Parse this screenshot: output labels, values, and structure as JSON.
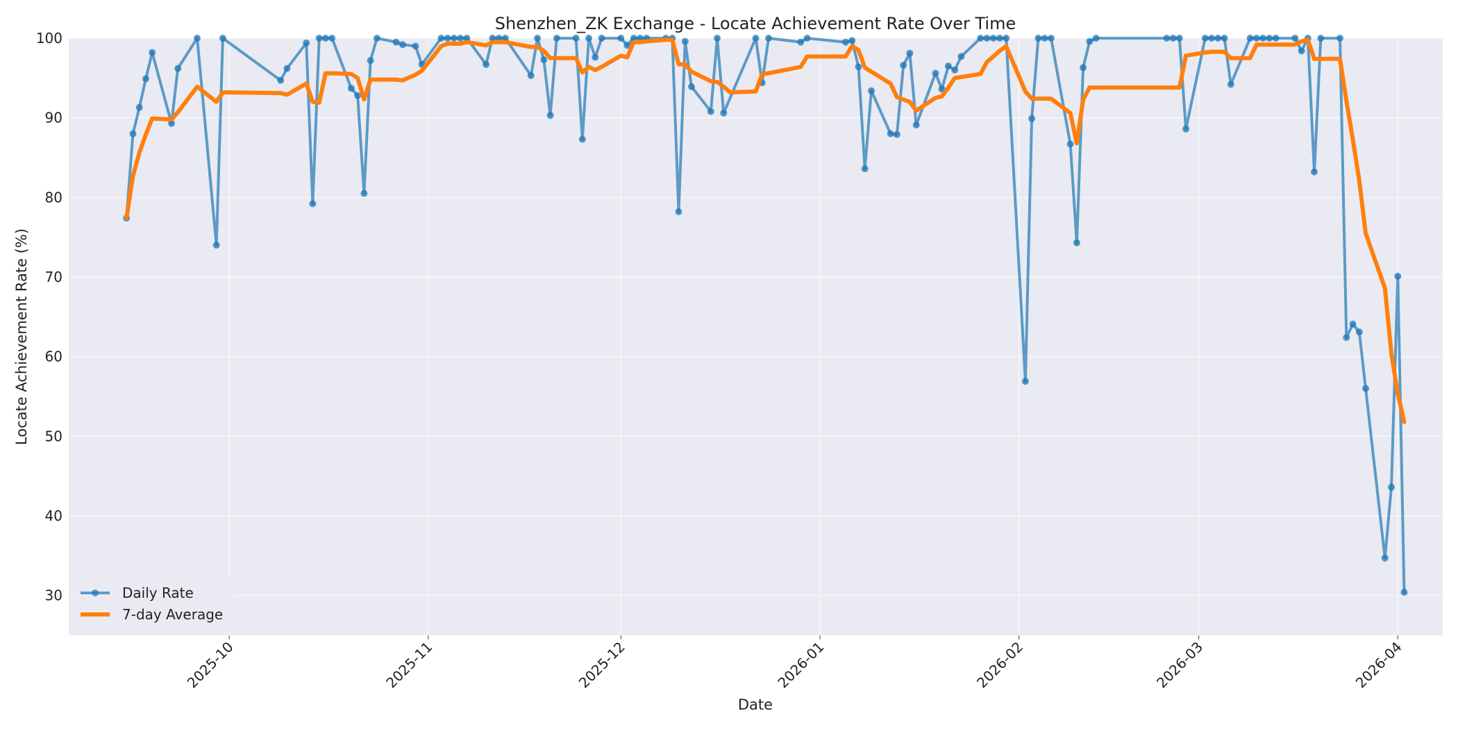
{
  "chart_data": {
    "type": "line",
    "title": "Shenzhen_ZK Exchange - Locate Achievement Rate Over Time",
    "xlabel": "Date",
    "ylabel": "Locate Achievement Rate (%)",
    "xlim": [
      "2025-09-06",
      "2026-04-08"
    ],
    "ylim": [
      25,
      100
    ],
    "x_ticks": [
      "2025-10",
      "2025-11",
      "2025-12",
      "2026-01",
      "2026-02",
      "2026-03",
      "2026-04"
    ],
    "y_ticks": [
      30,
      40,
      50,
      60,
      70,
      80,
      90,
      100
    ],
    "grid": true,
    "legend_position": "lower-left",
    "colors": {
      "daily": "#1f77b4",
      "average": "#ff7f0e",
      "plot_bg": "#eaeaf2",
      "grid": "#f5f5f9"
    },
    "series": [
      {
        "name": "Daily Rate",
        "style": "line-markers",
        "color": "#1f77b4",
        "points": [
          [
            "2025-09-15",
            77.4
          ],
          [
            "2025-09-16",
            88.0
          ],
          [
            "2025-09-17",
            91.3
          ],
          [
            "2025-09-18",
            94.9
          ],
          [
            "2025-09-19",
            98.2
          ],
          [
            "2025-09-22",
            89.3
          ],
          [
            "2025-09-23",
            96.2
          ],
          [
            "2025-09-26",
            100.0
          ],
          [
            "2025-09-29",
            74.0
          ],
          [
            "2025-09-30",
            100.0
          ],
          [
            "2025-10-09",
            94.7
          ],
          [
            "2025-10-10",
            96.2
          ],
          [
            "2025-10-13",
            99.4
          ],
          [
            "2025-10-14",
            79.2
          ],
          [
            "2025-10-15",
            100.0
          ],
          [
            "2025-10-16",
            100.0
          ],
          [
            "2025-10-17",
            100.0
          ],
          [
            "2025-10-20",
            93.7
          ],
          [
            "2025-10-21",
            92.8
          ],
          [
            "2025-10-22",
            80.5
          ],
          [
            "2025-10-23",
            97.2
          ],
          [
            "2025-10-24",
            100.0
          ],
          [
            "2025-10-27",
            99.5
          ],
          [
            "2025-10-28",
            99.2
          ],
          [
            "2025-10-30",
            99.0
          ],
          [
            "2025-10-31",
            96.7
          ],
          [
            "2025-11-03",
            100.0
          ],
          [
            "2025-11-04",
            100.0
          ],
          [
            "2025-11-05",
            100.0
          ],
          [
            "2025-11-06",
            100.0
          ],
          [
            "2025-11-07",
            100.0
          ],
          [
            "2025-11-10",
            96.7
          ],
          [
            "2025-11-11",
            100.0
          ],
          [
            "2025-11-12",
            100.0
          ],
          [
            "2025-11-13",
            100.0
          ],
          [
            "2025-11-17",
            95.3
          ],
          [
            "2025-11-18",
            100.0
          ],
          [
            "2025-11-19",
            97.3
          ],
          [
            "2025-11-20",
            90.3
          ],
          [
            "2025-11-21",
            100.0
          ],
          [
            "2025-11-24",
            100.0
          ],
          [
            "2025-11-25",
            87.3
          ],
          [
            "2025-11-26",
            100.0
          ],
          [
            "2025-11-27",
            97.6
          ],
          [
            "2025-11-28",
            100.0
          ],
          [
            "2025-12-01",
            100.0
          ],
          [
            "2025-12-02",
            99.1
          ],
          [
            "2025-12-03",
            100.0
          ],
          [
            "2025-12-04",
            100.0
          ],
          [
            "2025-12-05",
            100.0
          ],
          [
            "2025-12-08",
            100.0
          ],
          [
            "2025-12-09",
            100.0
          ],
          [
            "2025-12-10",
            78.2
          ],
          [
            "2025-12-11",
            99.6
          ],
          [
            "2025-12-12",
            93.9
          ],
          [
            "2025-12-15",
            90.8
          ],
          [
            "2025-12-16",
            100.0
          ],
          [
            "2025-12-17",
            90.6
          ],
          [
            "2025-12-22",
            100.0
          ],
          [
            "2025-12-23",
            94.4
          ],
          [
            "2025-12-24",
            100.0
          ],
          [
            "2025-12-29",
            99.5
          ],
          [
            "2025-12-30",
            100.0
          ],
          [
            "2026-01-05",
            99.5
          ],
          [
            "2026-01-06",
            99.7
          ],
          [
            "2026-01-07",
            96.4
          ],
          [
            "2026-01-08",
            83.6
          ],
          [
            "2026-01-09",
            93.4
          ],
          [
            "2026-01-12",
            88.0
          ],
          [
            "2026-01-13",
            87.9
          ],
          [
            "2026-01-14",
            96.6
          ],
          [
            "2026-01-15",
            98.1
          ],
          [
            "2026-01-16",
            89.1
          ],
          [
            "2026-01-19",
            95.6
          ],
          [
            "2026-01-20",
            93.6
          ],
          [
            "2026-01-21",
            96.5
          ],
          [
            "2026-01-22",
            96.0
          ],
          [
            "2026-01-23",
            97.7
          ],
          [
            "2026-01-26",
            100.0
          ],
          [
            "2026-01-27",
            100.0
          ],
          [
            "2026-01-28",
            100.0
          ],
          [
            "2026-01-29",
            100.0
          ],
          [
            "2026-01-30",
            100.0
          ],
          [
            "2026-02-02",
            56.9
          ],
          [
            "2026-02-03",
            89.9
          ],
          [
            "2026-02-04",
            100.0
          ],
          [
            "2026-02-05",
            100.0
          ],
          [
            "2026-02-06",
            100.0
          ],
          [
            "2026-02-09",
            86.7
          ],
          [
            "2026-02-10",
            74.3
          ],
          [
            "2026-02-11",
            96.3
          ],
          [
            "2026-02-12",
            99.6
          ],
          [
            "2026-02-13",
            100.0
          ],
          [
            "2026-02-24",
            100.0
          ],
          [
            "2026-02-25",
            100.0
          ],
          [
            "2026-02-26",
            100.0
          ],
          [
            "2026-02-27",
            88.6
          ],
          [
            "2026-03-02",
            100.0
          ],
          [
            "2026-03-03",
            100.0
          ],
          [
            "2026-03-04",
            100.0
          ],
          [
            "2026-03-05",
            100.0
          ],
          [
            "2026-03-06",
            94.2
          ],
          [
            "2026-03-09",
            100.0
          ],
          [
            "2026-03-10",
            100.0
          ],
          [
            "2026-03-11",
            100.0
          ],
          [
            "2026-03-12",
            100.0
          ],
          [
            "2026-03-13",
            100.0
          ],
          [
            "2026-03-16",
            100.0
          ],
          [
            "2026-03-17",
            98.4
          ],
          [
            "2026-03-18",
            100.0
          ],
          [
            "2026-03-19",
            83.2
          ],
          [
            "2026-03-20",
            100.0
          ],
          [
            "2026-03-23",
            100.0
          ],
          [
            "2026-03-24",
            62.4
          ],
          [
            "2026-03-25",
            64.1
          ],
          [
            "2026-03-26",
            63.1
          ],
          [
            "2026-03-27",
            56.0
          ],
          [
            "2026-03-30",
            34.7
          ],
          [
            "2026-03-31",
            43.6
          ],
          [
            "2026-04-01",
            70.1
          ],
          [
            "2026-04-02",
            30.4
          ]
        ]
      },
      {
        "name": "7-day Average",
        "style": "line",
        "color": "#ff7f0e",
        "points": [
          [
            "2025-09-15",
            77.4
          ],
          [
            "2025-09-16",
            82.7
          ],
          [
            "2025-09-17",
            85.6
          ],
          [
            "2025-09-18",
            87.9
          ],
          [
            "2025-09-19",
            89.9
          ],
          [
            "2025-09-22",
            89.8
          ],
          [
            "2025-09-23",
            90.7
          ],
          [
            "2025-09-26",
            93.9
          ],
          [
            "2025-09-29",
            92.0
          ],
          [
            "2025-09-30",
            93.2
          ],
          [
            "2025-10-09",
            93.1
          ],
          [
            "2025-10-10",
            92.9
          ],
          [
            "2025-10-13",
            94.3
          ],
          [
            "2025-10-14",
            92.0
          ],
          [
            "2025-10-15",
            91.9
          ],
          [
            "2025-10-16",
            95.6
          ],
          [
            "2025-10-17",
            95.6
          ],
          [
            "2025-10-20",
            95.5
          ],
          [
            "2025-10-21",
            95.0
          ],
          [
            "2025-10-22",
            92.3
          ],
          [
            "2025-10-23",
            94.8
          ],
          [
            "2025-10-24",
            94.8
          ],
          [
            "2025-10-27",
            94.8
          ],
          [
            "2025-10-28",
            94.7
          ],
          [
            "2025-10-30",
            95.4
          ],
          [
            "2025-10-31",
            95.9
          ],
          [
            "2025-11-03",
            99.0
          ],
          [
            "2025-11-04",
            99.3
          ],
          [
            "2025-11-05",
            99.3
          ],
          [
            "2025-11-06",
            99.3
          ],
          [
            "2025-11-07",
            99.5
          ],
          [
            "2025-11-10",
            99.1
          ],
          [
            "2025-11-11",
            99.5
          ],
          [
            "2025-11-12",
            99.5
          ],
          [
            "2025-11-13",
            99.5
          ],
          [
            "2025-11-17",
            98.9
          ],
          [
            "2025-11-18",
            98.9
          ],
          [
            "2025-11-19",
            98.4
          ],
          [
            "2025-11-20",
            97.5
          ],
          [
            "2025-11-21",
            97.5
          ],
          [
            "2025-11-24",
            97.5
          ],
          [
            "2025-11-25",
            95.7
          ],
          [
            "2025-11-26",
            96.4
          ],
          [
            "2025-11-27",
            96.0
          ],
          [
            "2025-11-28",
            96.4
          ],
          [
            "2025-12-01",
            97.8
          ],
          [
            "2025-12-02",
            97.6
          ],
          [
            "2025-12-03",
            99.5
          ],
          [
            "2025-12-04",
            99.5
          ],
          [
            "2025-12-05",
            99.6
          ],
          [
            "2025-12-08",
            99.8
          ],
          [
            "2025-12-09",
            99.8
          ],
          [
            "2025-12-10",
            96.7
          ],
          [
            "2025-12-11",
            96.7
          ],
          [
            "2025-12-12",
            95.8
          ],
          [
            "2025-12-15",
            94.6
          ],
          [
            "2025-12-16",
            94.5
          ],
          [
            "2025-12-17",
            93.9
          ],
          [
            "2025-12-18",
            93.2
          ],
          [
            "2025-12-22",
            93.3
          ],
          [
            "2025-12-23",
            95.5
          ],
          [
            "2025-12-24",
            95.6
          ],
          [
            "2025-12-29",
            96.4
          ],
          [
            "2025-12-30",
            97.7
          ],
          [
            "2026-01-05",
            97.7
          ],
          [
            "2026-01-06",
            99.0
          ],
          [
            "2026-01-07",
            98.5
          ],
          [
            "2026-01-08",
            96.3
          ],
          [
            "2026-01-12",
            94.3
          ],
          [
            "2026-01-13",
            92.6
          ],
          [
            "2026-01-15",
            92.0
          ],
          [
            "2026-01-16",
            90.9
          ],
          [
            "2026-01-19",
            92.5
          ],
          [
            "2026-01-20",
            92.7
          ],
          [
            "2026-01-21",
            93.8
          ],
          [
            "2026-01-22",
            95.0
          ],
          [
            "2026-01-26",
            95.5
          ],
          [
            "2026-01-27",
            97.0
          ],
          [
            "2026-01-29",
            98.4
          ],
          [
            "2026-01-30",
            99.0
          ],
          [
            "2026-02-02",
            93.3
          ],
          [
            "2026-02-03",
            92.4
          ],
          [
            "2026-02-06",
            92.4
          ],
          [
            "2026-02-09",
            90.6
          ],
          [
            "2026-02-10",
            86.8
          ],
          [
            "2026-02-11",
            92.3
          ],
          [
            "2026-02-12",
            93.8
          ],
          [
            "2026-02-13",
            93.8
          ],
          [
            "2026-02-24",
            93.8
          ],
          [
            "2026-02-25",
            93.8
          ],
          [
            "2026-02-26",
            93.8
          ],
          [
            "2026-02-27",
            97.8
          ],
          [
            "2026-03-02",
            98.2
          ],
          [
            "2026-03-03",
            98.3
          ],
          [
            "2026-03-05",
            98.3
          ],
          [
            "2026-03-06",
            97.5
          ],
          [
            "2026-03-09",
            97.5
          ],
          [
            "2026-03-10",
            99.2
          ],
          [
            "2026-03-12",
            99.2
          ],
          [
            "2026-03-16",
            99.2
          ],
          [
            "2026-03-17",
            99.6
          ],
          [
            "2026-03-18",
            99.8
          ],
          [
            "2026-03-19",
            97.4
          ],
          [
            "2026-03-23",
            97.4
          ],
          [
            "2026-03-24",
            92.1
          ],
          [
            "2026-03-25",
            87.3
          ],
          [
            "2026-03-26",
            82.1
          ],
          [
            "2026-03-27",
            75.5
          ],
          [
            "2026-03-30",
            68.6
          ],
          [
            "2026-03-31",
            60.4
          ],
          [
            "2026-04-01",
            55.3
          ],
          [
            "2026-04-02",
            51.8
          ]
        ]
      }
    ]
  }
}
